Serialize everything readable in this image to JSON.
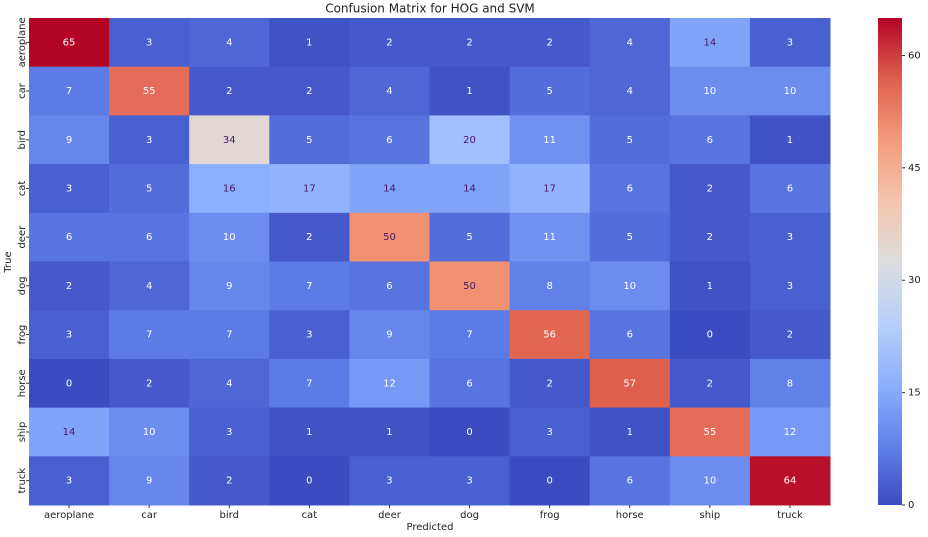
{
  "chart_data": {
    "type": "heatmap",
    "title": "Confusion Matrix for HOG and SVM",
    "x_label": "Predicted",
    "y_label": "True",
    "x_categories": [
      "aeroplane",
      "car",
      "bird",
      "cat",
      "deer",
      "dog",
      "frog",
      "horse",
      "ship",
      "truck"
    ],
    "y_categories": [
      "aeroplane",
      "car",
      "bird",
      "cat",
      "deer",
      "dog",
      "frog",
      "horse",
      "ship",
      "truck"
    ],
    "values": [
      [
        65,
        3,
        4,
        1,
        2,
        2,
        2,
        4,
        14,
        3
      ],
      [
        7,
        55,
        2,
        2,
        4,
        1,
        5,
        4,
        10,
        10
      ],
      [
        9,
        3,
        34,
        5,
        6,
        20,
        11,
        5,
        6,
        1
      ],
      [
        3,
        5,
        16,
        17,
        14,
        14,
        17,
        6,
        2,
        6
      ],
      [
        6,
        6,
        10,
        2,
        50,
        5,
        11,
        5,
        2,
        3
      ],
      [
        2,
        4,
        9,
        7,
        6,
        50,
        8,
        10,
        1,
        3
      ],
      [
        3,
        7,
        7,
        3,
        9,
        7,
        56,
        6,
        0,
        2
      ],
      [
        0,
        2,
        4,
        7,
        12,
        6,
        2,
        57,
        2,
        8
      ],
      [
        14,
        10,
        3,
        1,
        1,
        0,
        3,
        1,
        55,
        12
      ],
      [
        3,
        9,
        2,
        0,
        3,
        3,
        0,
        6,
        10,
        64
      ]
    ],
    "colormap": "coolwarm",
    "zlim": [
      0,
      65
    ],
    "colorbar_ticks": [
      0,
      15,
      30,
      45,
      60
    ]
  }
}
